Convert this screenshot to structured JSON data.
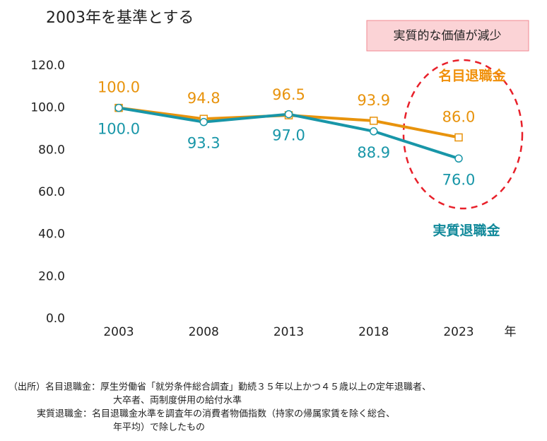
{
  "chart_data": {
    "type": "line",
    "title": "2003年を基準とする",
    "annotation": "実質的な価値が減少",
    "categories": [
      "2003",
      "2008",
      "2013",
      "2018",
      "2023"
    ],
    "x_label": "年",
    "ylim": [
      0,
      120
    ],
    "yticks": [
      {
        "value": 0,
        "label": "0.0"
      },
      {
        "value": 20,
        "label": "20.0"
      },
      {
        "value": 40,
        "label": "40.0"
      },
      {
        "value": 60,
        "label": "60.0"
      },
      {
        "value": 80,
        "label": "80.0"
      },
      {
        "value": 100,
        "label": "100.0"
      },
      {
        "value": 120,
        "label": "120.0"
      }
    ],
    "grid": false,
    "series": [
      {
        "name": "名目退職金",
        "color": "#e8930c",
        "marker": "square",
        "values": [
          100,
          94.8,
          96.5,
          93.9,
          86.0
        ],
        "value_labels": [
          "100.0",
          "94.8",
          "96.5",
          "93.9",
          "86.0"
        ]
      },
      {
        "name": "実質退職金",
        "color": "#1896a8",
        "marker": "circle",
        "values": [
          100,
          93.3,
          97.0,
          88.9,
          76.0
        ],
        "value_labels": [
          "100.0",
          "93.3",
          "97.0",
          "88.9",
          "76.0"
        ]
      }
    ],
    "source_notes": [
      "（出所）名目退職金：厚生労働省「就労条件総合調査」勤続３５年以上かつ４５歳以上の定年退職者、",
      "大卒者、両制度併用の給付水準",
      "実質退職金：名目退職金水準を調査年の消費者物価指数（持家の帰属家賃を除く総合、",
      "年平均）で除したもの"
    ]
  }
}
